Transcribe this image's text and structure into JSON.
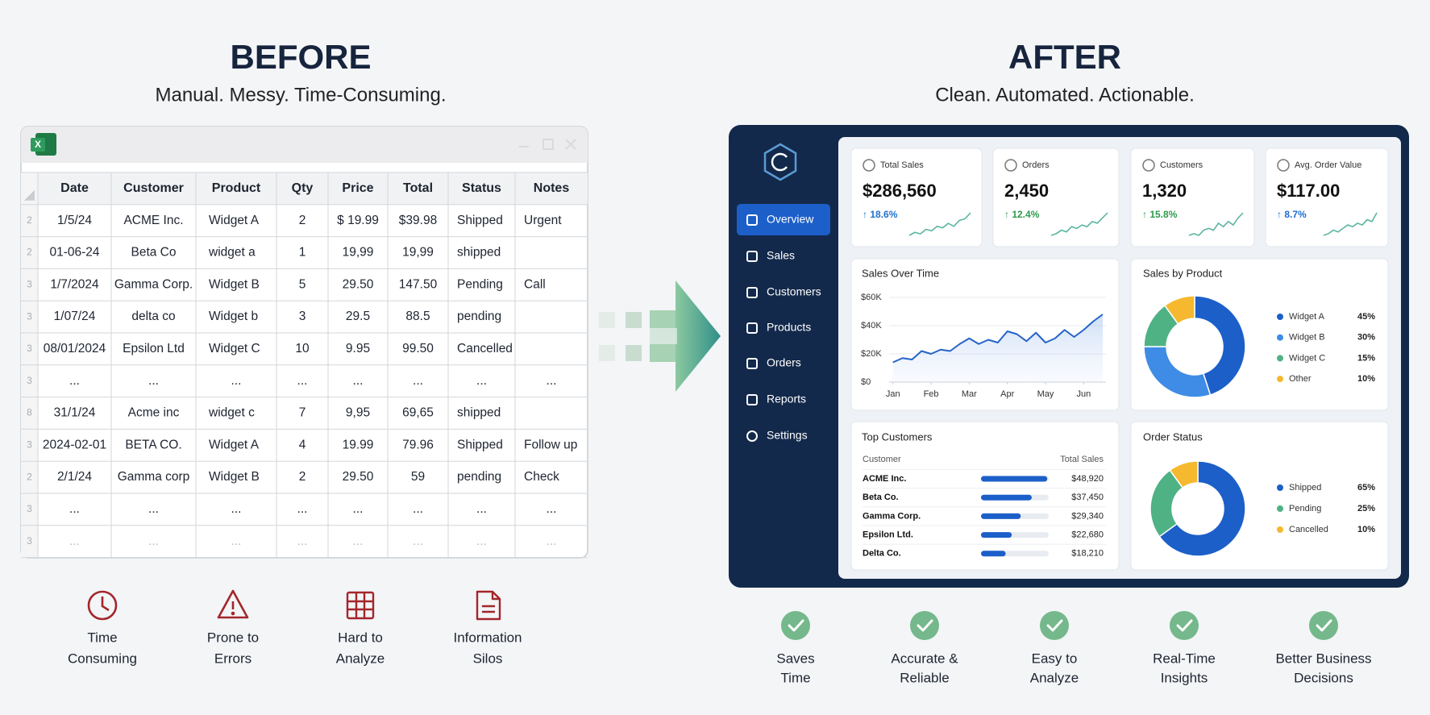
{
  "before": {
    "title": "BEFORE",
    "subtitle": "Manual. Messy. Time-Consuming.",
    "spreadsheet": {
      "columns": [
        "Date",
        "Customer",
        "Product",
        "Qty",
        "Price",
        "Total",
        "Status",
        "Notes"
      ],
      "rows": [
        {
          "row_number": "2",
          "cells": [
            "1/5/24",
            "ACME Inc.",
            "Widget A",
            "2",
            "$ 19.99",
            "$39.98",
            "Shipped",
            "Urgent"
          ]
        },
        {
          "row_number": "2",
          "cells": [
            "01-06-24",
            "Beta Co",
            "widget a",
            "1",
            "19,99",
            "19,99",
            "shipped",
            null
          ]
        },
        {
          "row_number": "3",
          "cells": [
            "1/7/2024",
            "Gamma Corp.",
            "Widget B",
            "5",
            "29.50",
            "147.50",
            "Pending",
            "Call"
          ]
        },
        {
          "row_number": "3",
          "cells": [
            "1/07/24",
            "delta co",
            "Widget b",
            "3",
            "29.5",
            "88.5",
            "pending",
            null
          ]
        },
        {
          "row_number": "3",
          "cells": [
            "08/01/2024",
            "Epsilon Ltd",
            "Widget C",
            "10",
            "9.95",
            "99.50",
            "Cancelled",
            null
          ]
        },
        {
          "row_number": "3",
          "cells": [
            "...",
            "...",
            "...",
            "...",
            "...",
            "...",
            "...",
            "..."
          ]
        },
        {
          "row_number": "8",
          "cells": [
            "31/1/24",
            "Acme inc",
            "widget c",
            "7",
            "9,95",
            "69,65",
            "shipped",
            null
          ]
        },
        {
          "row_number": "3",
          "cells": [
            "2024-02-01",
            "BETA CO.",
            "Widget A",
            "4",
            "19.99",
            "79.96",
            "Shipped",
            "Follow up"
          ]
        },
        {
          "row_number": "2",
          "cells": [
            "2/1/24",
            "Gamma corp",
            "Widget B",
            "2",
            "29.50",
            "59",
            "pending",
            "Check"
          ]
        },
        {
          "row_number": "3",
          "cells": [
            "...",
            "...",
            "...",
            "...",
            "...",
            "...",
            "...",
            "..."
          ]
        },
        {
          "row_number": "3",
          "cells": [
            "...",
            "...",
            "...",
            "...",
            "...",
            "...",
            "...",
            "..."
          ]
        }
      ]
    },
    "pain_points": [
      {
        "lines": [
          "Time",
          "Consuming"
        ]
      },
      {
        "lines": [
          "Prone to",
          "Errors"
        ]
      },
      {
        "lines": [
          "Hard to",
          "Analyze"
        ]
      },
      {
        "lines": [
          "Information",
          "Silos"
        ]
      }
    ]
  },
  "after": {
    "title": "AFTER",
    "subtitle": "Clean. Automated. Actionable.",
    "nav": [
      "Overview",
      "Sales",
      "Customers",
      "Products",
      "Orders",
      "Reports",
      "Settings"
    ],
    "sparkline_color": "#5bb5a2",
    "kpis": [
      {
        "label": "Total Sales",
        "value": "$286,560",
        "change": "↑ 18.6%",
        "color": "#1f6fd1",
        "trend": [
          3,
          5,
          4,
          7,
          6,
          9,
          8,
          11,
          9,
          13,
          14,
          18
        ]
      },
      {
        "label": "Orders",
        "value": "2,450",
        "change": "↑ 12.4%",
        "color": "#2e9a4c",
        "trend": [
          3,
          4,
          6,
          5,
          8,
          7,
          9,
          8,
          11,
          10,
          13,
          16
        ]
      },
      {
        "label": "Customers",
        "value": "1,320",
        "change": "↑ 15.8%",
        "color": "#2e9a4c",
        "trend": [
          4,
          5,
          4,
          7,
          8,
          7,
          11,
          9,
          12,
          10,
          14,
          17
        ]
      },
      {
        "label": "Avg. Order Value",
        "value": "$117.00",
        "change": "↑ 8.7%",
        "color": "#1f6fd1",
        "trend": [
          3,
          4,
          6,
          5,
          7,
          9,
          8,
          10,
          9,
          12,
          11,
          16
        ]
      }
    ],
    "benefits": [
      {
        "lines": [
          "Saves",
          "Time"
        ]
      },
      {
        "lines": [
          "Accurate &",
          "Reliable"
        ]
      },
      {
        "lines": [
          "Easy to",
          "Analyze"
        ]
      },
      {
        "lines": [
          "Real-Time",
          "Insights"
        ]
      },
      {
        "lines": [
          "Better Business",
          "Decisions"
        ]
      }
    ]
  },
  "chart_data": [
    {
      "type": "line",
      "title": "Sales Over Time",
      "color": "#2563c9",
      "x": [
        0,
        0.25,
        0.5,
        0.75,
        1,
        1.25,
        1.5,
        1.75,
        2,
        2.25,
        2.5,
        2.75,
        3,
        3.25,
        3.5,
        3.75,
        4,
        4.25,
        4.5,
        4.75,
        5,
        5.25,
        5.5
      ],
      "values": [
        14000,
        17000,
        16000,
        22000,
        20000,
        23000,
        22000,
        27000,
        31000,
        27000,
        30000,
        28000,
        36000,
        34000,
        29000,
        35000,
        28000,
        31000,
        37000,
        32000,
        37000,
        43000,
        48000
      ],
      "xlim": [
        -0.1,
        5.5
      ],
      "xticks": [
        {
          "value": 0,
          "label": "Jan"
        },
        {
          "value": 1,
          "label": "Feb"
        },
        {
          "value": 2,
          "label": "Mar"
        },
        {
          "value": 3,
          "label": "Apr"
        },
        {
          "value": 4,
          "label": "May"
        },
        {
          "value": 5,
          "label": "Jun"
        }
      ],
      "ylim": [
        0,
        60000
      ],
      "yticks": [
        {
          "value": 0,
          "label": "$0"
        },
        {
          "value": 20000,
          "label": "$20K"
        },
        {
          "value": 40000,
          "label": "$40K"
        },
        {
          "value": 60000,
          "label": "$60K"
        }
      ],
      "grid": true
    },
    {
      "type": "pie",
      "title": "Sales by Product",
      "categories": [
        "Widget A",
        "Widget B",
        "Widget C",
        "Other"
      ],
      "values": [
        45,
        30,
        15,
        10
      ],
      "value_labels": [
        "45%",
        "30%",
        "15%",
        "10%"
      ],
      "colors": [
        "#1c5fc9",
        "#3f8ce6",
        "#4fb285",
        "#f5b82e"
      ]
    },
    {
      "type": "bar",
      "title": "Top Customers",
      "category_header": "Customer",
      "value_header": "Total Sales",
      "categories": [
        "ACME Inc.",
        "Beta Co.",
        "Gamma Corp.",
        "Epsilon Ltd.",
        "Delta Co."
      ],
      "values": [
        48920,
        37450,
        29340,
        22680,
        18210
      ],
      "value_labels": [
        "$48,920",
        "$37,450",
        "$29,340",
        "$22,680",
        "$18,210"
      ],
      "xlim": [
        0,
        50000
      ],
      "color": "#1c5fc9"
    },
    {
      "type": "pie",
      "title": "Order Status",
      "categories": [
        "Shipped",
        "Pending",
        "Cancelled"
      ],
      "values": [
        65,
        25,
        10
      ],
      "value_labels": [
        "65%",
        "25%",
        "10%"
      ],
      "colors": [
        "#1c5fc9",
        "#4fb285",
        "#f5b82e"
      ]
    }
  ]
}
